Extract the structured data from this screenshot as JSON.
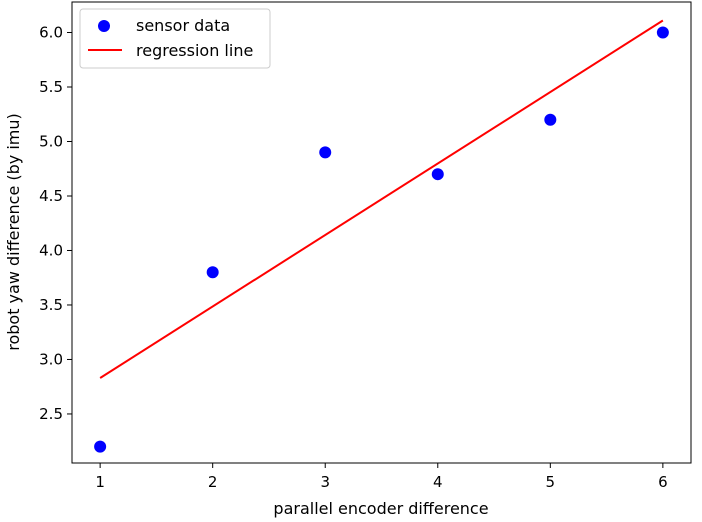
{
  "chart_data": {
    "type": "scatter",
    "xlabel": "parallel encoder difference",
    "ylabel": "robot yaw difference (by imu)",
    "xlim": [
      0.75,
      6.25
    ],
    "ylim": [
      2.05,
      6.28
    ],
    "xticks": [
      1,
      2,
      3,
      4,
      5,
      6
    ],
    "xtick_labels": [
      "1",
      "2",
      "3",
      "4",
      "5",
      "6"
    ],
    "yticks": [
      2.5,
      3.0,
      3.5,
      4.0,
      4.5,
      5.0,
      5.5,
      6.0
    ],
    "ytick_labels": [
      "2.5",
      "3.0",
      "3.5",
      "4.0",
      "4.5",
      "5.0",
      "5.5",
      "6.0"
    ],
    "grid": false,
    "legend_position": "top-left",
    "series": [
      {
        "name": "sensor data",
        "kind": "scatter",
        "color": "#0000ff",
        "x": [
          1,
          2,
          3,
          4,
          5,
          6
        ],
        "y": [
          2.2,
          3.8,
          4.9,
          4.7,
          5.2,
          6.0
        ]
      },
      {
        "name": "regression line",
        "kind": "line",
        "color": "#ff0000",
        "x": [
          1,
          6
        ],
        "y": [
          2.83,
          6.11
        ]
      }
    ]
  }
}
